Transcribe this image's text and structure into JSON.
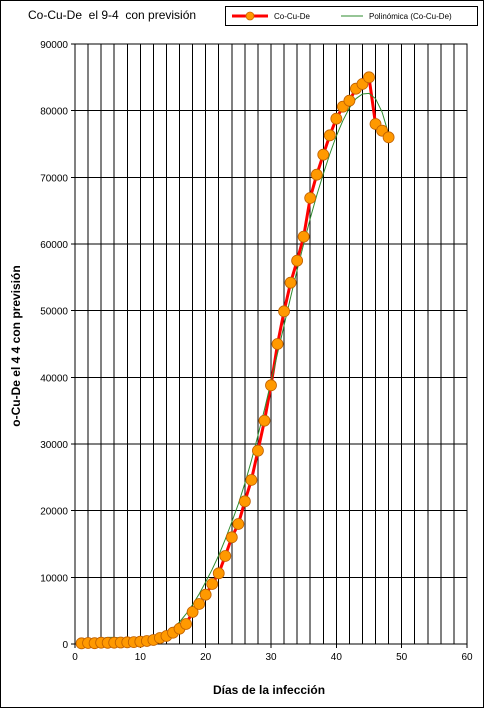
{
  "chart_data": {
    "type": "line",
    "title": "Co-Cu-De  el 9-4  con previsión",
    "xlabel": "Días de la infección",
    "ylabel": "o-Cu-De el 4 4 con previsión",
    "xlim": [
      0,
      60
    ],
    "ylim": [
      0,
      90000
    ],
    "xticks": [
      0,
      10,
      20,
      30,
      40,
      50,
      60
    ],
    "yticks": [
      0,
      10000,
      20000,
      30000,
      40000,
      50000,
      60000,
      70000,
      80000,
      90000
    ],
    "grid": "vertical every 2 units, horizontal every 10000",
    "legend_position": "top-right",
    "series": [
      {
        "name": "Co-Cu-De",
        "color": "#ff0000",
        "marker_color": "#ff9900",
        "x": [
          1,
          2,
          3,
          4,
          5,
          6,
          7,
          8,
          9,
          10,
          11,
          12,
          13,
          14,
          15,
          16,
          17,
          18,
          19,
          20,
          21,
          22,
          23,
          24,
          25,
          26,
          27,
          28,
          29,
          30,
          31,
          32,
          33,
          34,
          35,
          36,
          37,
          38,
          39,
          40,
          41,
          42,
          43,
          44,
          45,
          46,
          47,
          48
        ],
        "y": [
          100,
          150,
          120,
          200,
          180,
          200,
          220,
          250,
          280,
          350,
          450,
          600,
          900,
          1200,
          1700,
          2300,
          3000,
          4800,
          6000,
          7400,
          9000,
          10600,
          13200,
          16000,
          18000,
          21400,
          24600,
          29000,
          33500,
          38800,
          45000,
          49900,
          54200,
          57500,
          61100,
          66900,
          70400,
          73400,
          76300,
          78800,
          80600,
          81500,
          83300,
          84000,
          85000,
          78000,
          77000,
          76000
        ]
      },
      {
        "name": "Polinómica (Co-Cu-De)",
        "color": "#2e8b2e",
        "x": [
          1,
          2,
          3,
          4,
          5,
          6,
          7,
          8,
          9,
          10,
          11,
          12,
          13,
          14,
          15,
          16,
          17,
          18,
          19,
          20,
          21,
          22,
          23,
          24,
          25,
          26,
          27,
          28,
          29,
          30,
          31,
          32,
          33,
          34,
          35,
          36,
          37,
          38,
          39,
          40,
          41,
          42,
          43,
          44,
          45,
          46,
          47,
          48
        ],
        "y": [
          -300,
          100,
          500,
          800,
          1000,
          1000,
          900,
          700,
          600,
          500,
          600,
          800,
          1100,
          1700,
          2400,
          3300,
          4500,
          5900,
          7500,
          9300,
          11200,
          13300,
          15700,
          18300,
          21000,
          24100,
          27500,
          31300,
          35200,
          39300,
          43600,
          47800,
          52000,
          56100,
          60000,
          63800,
          67300,
          70500,
          73500,
          76200,
          78500,
          80400,
          81800,
          82500,
          82600,
          81800,
          79800,
          76500
        ]
      }
    ]
  }
}
